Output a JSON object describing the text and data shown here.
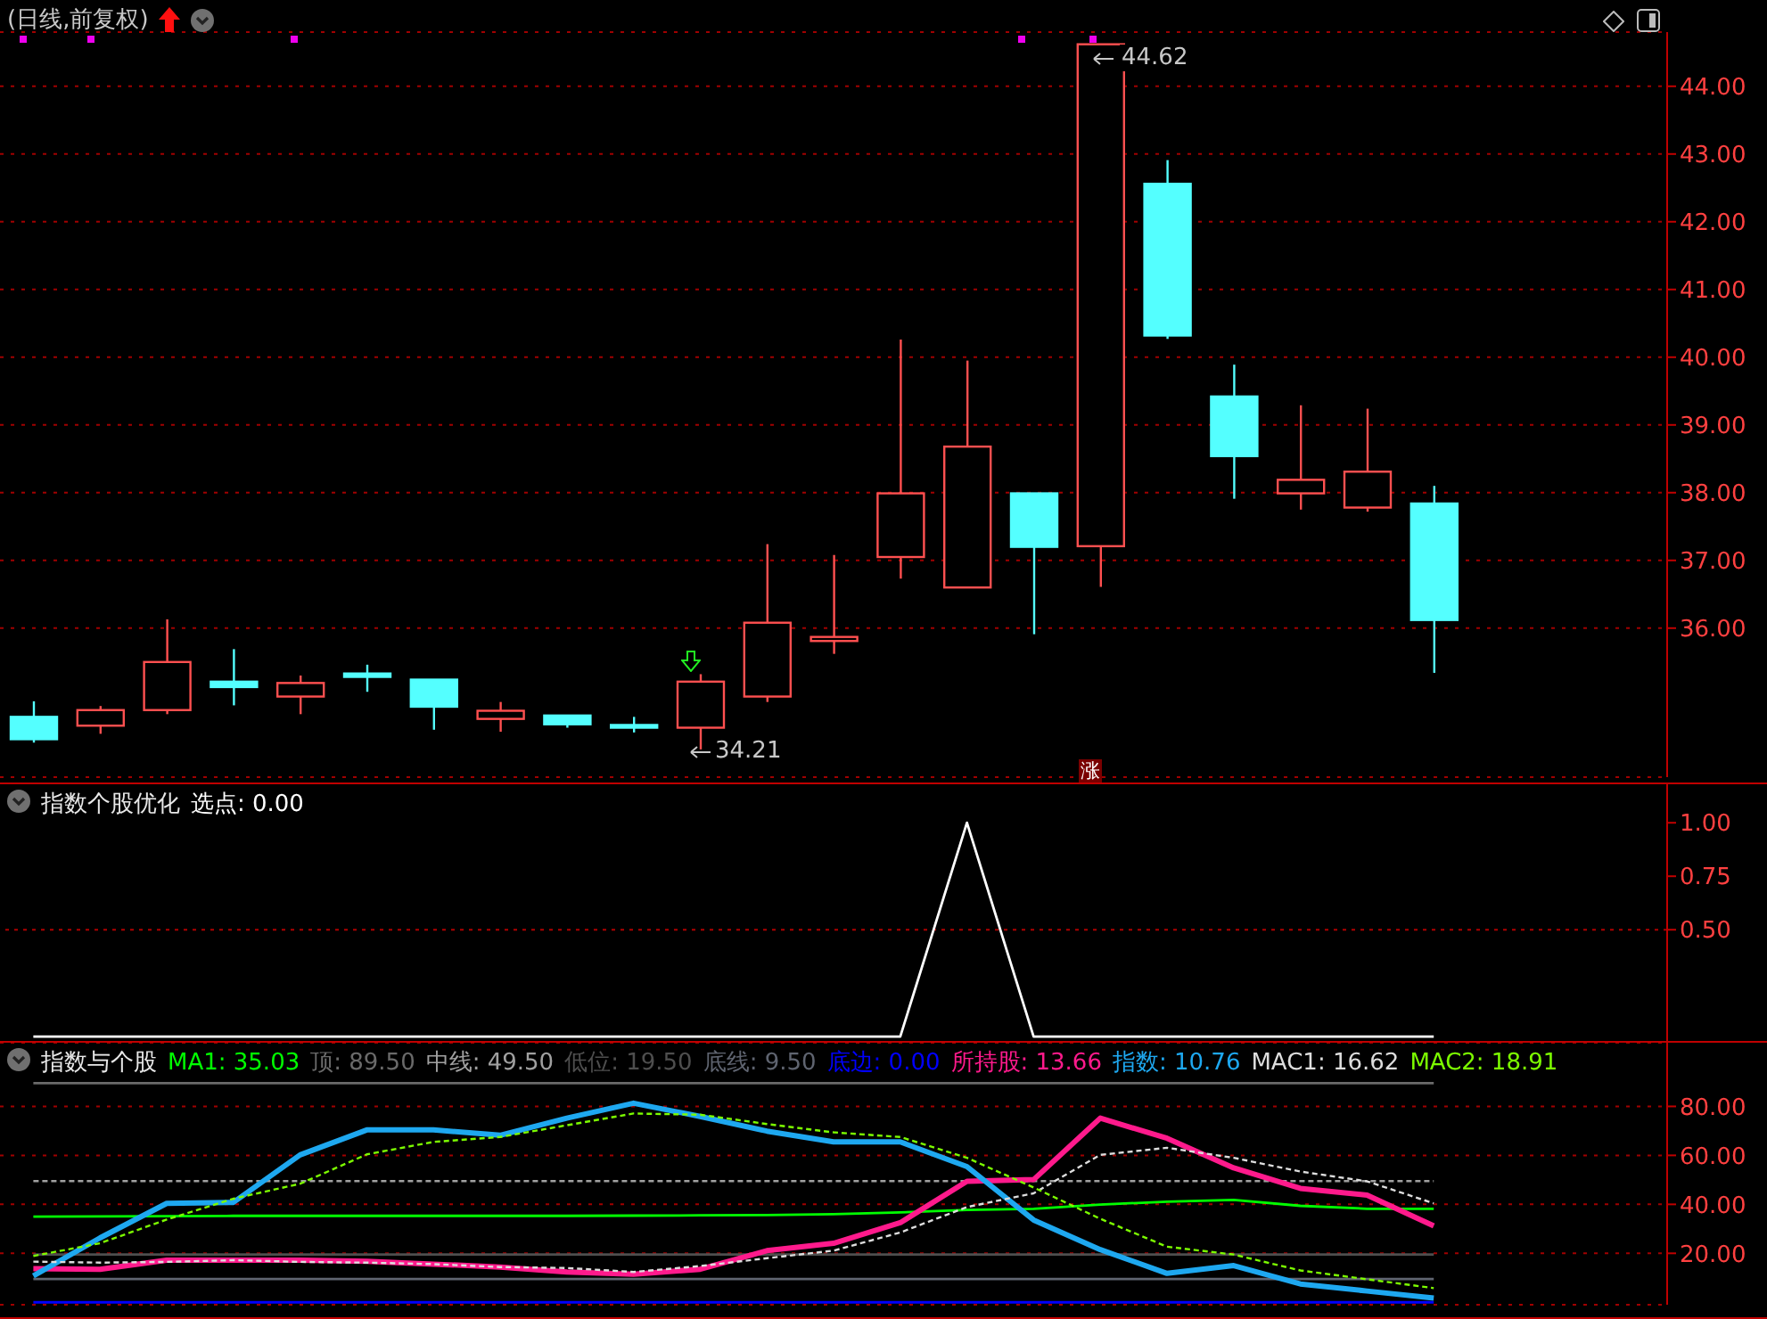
{
  "chart_data": [
    {
      "type": "candlestick",
      "title": "(日线,前复权)",
      "categories": [
        null,
        null,
        null,
        null,
        null,
        null,
        null,
        null,
        null,
        null,
        null,
        null,
        null,
        null,
        null,
        null,
        null,
        null,
        null,
        null,
        null,
        null,
        null,
        null,
        null
      ],
      "ohlc": [
        [
          34.69,
          34.92,
          34.31,
          34.36
        ],
        [
          34.56,
          34.85,
          34.44,
          34.79
        ],
        [
          34.79,
          36.13,
          34.73,
          35.5
        ],
        [
          35.21,
          35.69,
          34.86,
          35.13
        ],
        [
          34.99,
          35.3,
          34.73,
          35.19
        ],
        [
          35.33,
          35.46,
          35.06,
          35.28
        ],
        [
          35.24,
          35.24,
          34.5,
          34.84
        ],
        [
          34.66,
          34.91,
          34.47,
          34.78
        ],
        [
          34.71,
          34.71,
          34.53,
          34.58
        ],
        [
          34.57,
          34.69,
          34.46,
          34.53
        ],
        [
          34.53,
          35.32,
          34.21,
          35.21
        ],
        [
          34.99,
          37.24,
          34.91,
          36.08
        ],
        [
          35.81,
          37.08,
          35.62,
          35.87
        ],
        [
          37.05,
          40.26,
          36.73,
          37.99
        ],
        [
          36.6,
          39.95,
          36.6,
          38.68
        ],
        [
          37.99,
          37.99,
          35.91,
          37.2
        ],
        [
          37.21,
          44.62,
          36.61,
          44.62
        ],
        [
          42.56,
          42.91,
          40.27,
          40.32
        ],
        [
          39.42,
          39.89,
          37.91,
          38.54
        ],
        [
          37.99,
          39.29,
          37.75,
          38.19
        ],
        [
          37.78,
          39.24,
          37.72,
          38.31
        ],
        [
          37.84,
          38.1,
          35.34,
          36.12
        ],
        null,
        null,
        null
      ],
      "colors": [
        "#54ffff",
        "#ff5050",
        "#ff5050",
        "#54ffff",
        "#ff5050",
        "#54ffff",
        "#54ffff",
        "#ff5050",
        "#54ffff",
        "#54ffff",
        "#ff5050",
        "#ff5050",
        "#ff5050",
        "#ff5050",
        "#ff5050",
        "#54ffff",
        "#ff5050",
        "#54ffff",
        "#54ffff",
        "#ff5050",
        "#ff5050",
        "#54ffff",
        null,
        null,
        null
      ],
      "ylim": [
        33.8,
        44.8
      ],
      "yticks": [
        {
          "value": 36,
          "label": "36.00"
        },
        {
          "value": 37,
          "label": "37.00"
        },
        {
          "value": 38,
          "label": "38.00"
        },
        {
          "value": 39,
          "label": "39.00"
        },
        {
          "value": 40,
          "label": "40.00"
        },
        {
          "value": 41,
          "label": "41.00"
        },
        {
          "value": 42,
          "label": "42.00"
        },
        {
          "value": 43,
          "label": "43.00"
        },
        {
          "value": 44,
          "label": "44.00"
        }
      ],
      "grid": "y",
      "tick_labels": "y",
      "annotations": [
        "44.62",
        "34.21",
        "涨"
      ]
    },
    {
      "type": "line",
      "title": "指数个股优化",
      "legend": "top left",
      "tick_labels": "y",
      "categories": [
        null,
        null,
        null,
        null,
        null,
        null,
        null,
        null,
        null,
        null,
        null,
        null,
        null,
        null,
        null,
        null,
        null,
        null,
        null,
        null,
        null,
        null,
        null,
        null,
        null
      ],
      "series": [
        {
          "name": "选点: 0.00",
          "color": "#ffffff",
          "values": [
            0,
            0,
            0,
            0,
            0,
            0,
            0,
            0,
            0,
            0,
            0,
            0,
            0,
            0,
            1,
            0,
            0,
            0,
            0,
            0,
            0,
            0,
            null,
            null,
            null
          ]
        }
      ],
      "ylim": [
        -0.02,
        1.18
      ],
      "yticks": [
        {
          "value": 0.5,
          "label": "0.50"
        },
        {
          "value": 0.75,
          "label": "0.75"
        },
        {
          "value": 1,
          "label": "1.00"
        }
      ],
      "ref_lines": [
        {
          "axis": "y",
          "value": 0.5,
          "color": "#b00000",
          "line_style": "dotted"
        }
      ]
    },
    {
      "type": "line",
      "title": "指数与个股",
      "legend": "top",
      "tick_labels": "y",
      "grid": "y",
      "categories": [
        null,
        null,
        null,
        null,
        null,
        null,
        null,
        null,
        null,
        null,
        null,
        null,
        null,
        null,
        null,
        null,
        null,
        null,
        null,
        null,
        null,
        null,
        null,
        null,
        null
      ],
      "series": [
        {
          "name": "MA1: 35.03",
          "color": "#00ff00",
          "values": [
            35.0,
            35.1,
            35.2,
            35.3,
            35.3,
            35.3,
            35.3,
            35.3,
            35.3,
            35.4,
            35.5,
            35.6,
            36.0,
            36.7,
            37.7,
            38.2,
            39.9,
            41.1,
            41.8,
            39.4,
            38.2,
            38.2,
            null,
            null,
            null
          ]
        },
        {
          "name": "顶: 89.50",
          "color": "#6a6a6a",
          "values": [
            89.5,
            89.5,
            89.5,
            89.5,
            89.5,
            89.5,
            89.5,
            89.5,
            89.5,
            89.5,
            89.5,
            89.5,
            89.5,
            89.5,
            89.5,
            89.5,
            89.5,
            89.5,
            89.5,
            89.5,
            89.5,
            89.5,
            null,
            null,
            null
          ]
        },
        {
          "name": "中线: 49.50",
          "color": "#a0a0a0",
          "line_style": "dashed",
          "values": [
            49.5,
            49.5,
            49.5,
            49.5,
            49.5,
            49.5,
            49.5,
            49.5,
            49.5,
            49.5,
            49.5,
            49.5,
            49.5,
            49.5,
            49.5,
            49.5,
            49.5,
            49.5,
            49.5,
            49.5,
            49.5,
            49.5,
            null,
            null,
            null
          ]
        },
        {
          "name": "低位: 19.50",
          "color": "#4e4e4e",
          "values": [
            19.5,
            19.5,
            19.5,
            19.5,
            19.5,
            19.5,
            19.5,
            19.5,
            19.5,
            19.5,
            19.5,
            19.5,
            19.5,
            19.5,
            19.5,
            19.5,
            19.5,
            19.5,
            19.5,
            19.5,
            19.5,
            19.5,
            null,
            null,
            null
          ]
        },
        {
          "name": "底线: 9.50",
          "color": "#5f6470",
          "values": [
            9.5,
            9.5,
            9.5,
            9.5,
            9.5,
            9.5,
            9.5,
            9.5,
            9.5,
            9.5,
            9.5,
            9.5,
            9.5,
            9.5,
            9.5,
            9.5,
            9.5,
            9.5,
            9.5,
            9.5,
            9.5,
            9.5,
            null,
            null,
            null
          ]
        },
        {
          "name": "底边: 0.00",
          "color": "#0000ff",
          "values": [
            0,
            0,
            0,
            0,
            0,
            0,
            0,
            0,
            0,
            0,
            0,
            0,
            0,
            0,
            0,
            0,
            0,
            0,
            0,
            0,
            0,
            0,
            null,
            null,
            null
          ]
        },
        {
          "name": "所持股: 13.66",
          "color": "#ff1a8c",
          "values": [
            13.7,
            13.5,
            17.2,
            17.2,
            17.2,
            16.7,
            15.6,
            14.4,
            12.4,
            11.5,
            13.5,
            21.1,
            24.1,
            32.5,
            49.4,
            50.1,
            75.2,
            67.0,
            54.9,
            46.5,
            43.8,
            31.2,
            null,
            null,
            null
          ]
        },
        {
          "name": "指数: 10.76",
          "color": "#1ea8f0",
          "values": [
            10.8,
            26.3,
            40.4,
            40.8,
            60.2,
            70.4,
            70.4,
            68.2,
            75.2,
            81.3,
            75.9,
            69.9,
            65.5,
            65.5,
            55.4,
            33.6,
            21.5,
            11.8,
            15.0,
            7.5,
            4.6,
            1.7,
            null,
            null,
            null
          ]
        },
        {
          "name": "MAC1: 16.62",
          "color": "#dddddd",
          "line_style": "dashed",
          "values": [
            16.6,
            16.2,
            16.5,
            17.2,
            16.5,
            16.2,
            15.6,
            14.4,
            14.0,
            12.4,
            14.8,
            18.0,
            21.1,
            28.5,
            38.9,
            44.5,
            60.2,
            63.1,
            59.0,
            53.4,
            49.4,
            40.4,
            null,
            null,
            null
          ]
        },
        {
          "name": "MAC2: 18.91",
          "color": "#7cfc00",
          "line_style": "dashed",
          "values": [
            18.9,
            24.1,
            33.8,
            42.3,
            48.4,
            60.4,
            65.5,
            67.5,
            72.3,
            77.1,
            76.6,
            72.8,
            69.4,
            67.5,
            59.0,
            46.9,
            34.1,
            22.7,
            19.5,
            13.0,
            9.4,
            5.8,
            null,
            null,
            null
          ]
        }
      ],
      "ylim": [
        -1,
        106
      ],
      "yticks": [
        {
          "value": 20,
          "label": "20.00"
        },
        {
          "value": 40,
          "label": "40.00"
        },
        {
          "value": 60,
          "label": "60.00"
        },
        {
          "value": 80,
          "label": "80.00"
        }
      ]
    }
  ]
}
